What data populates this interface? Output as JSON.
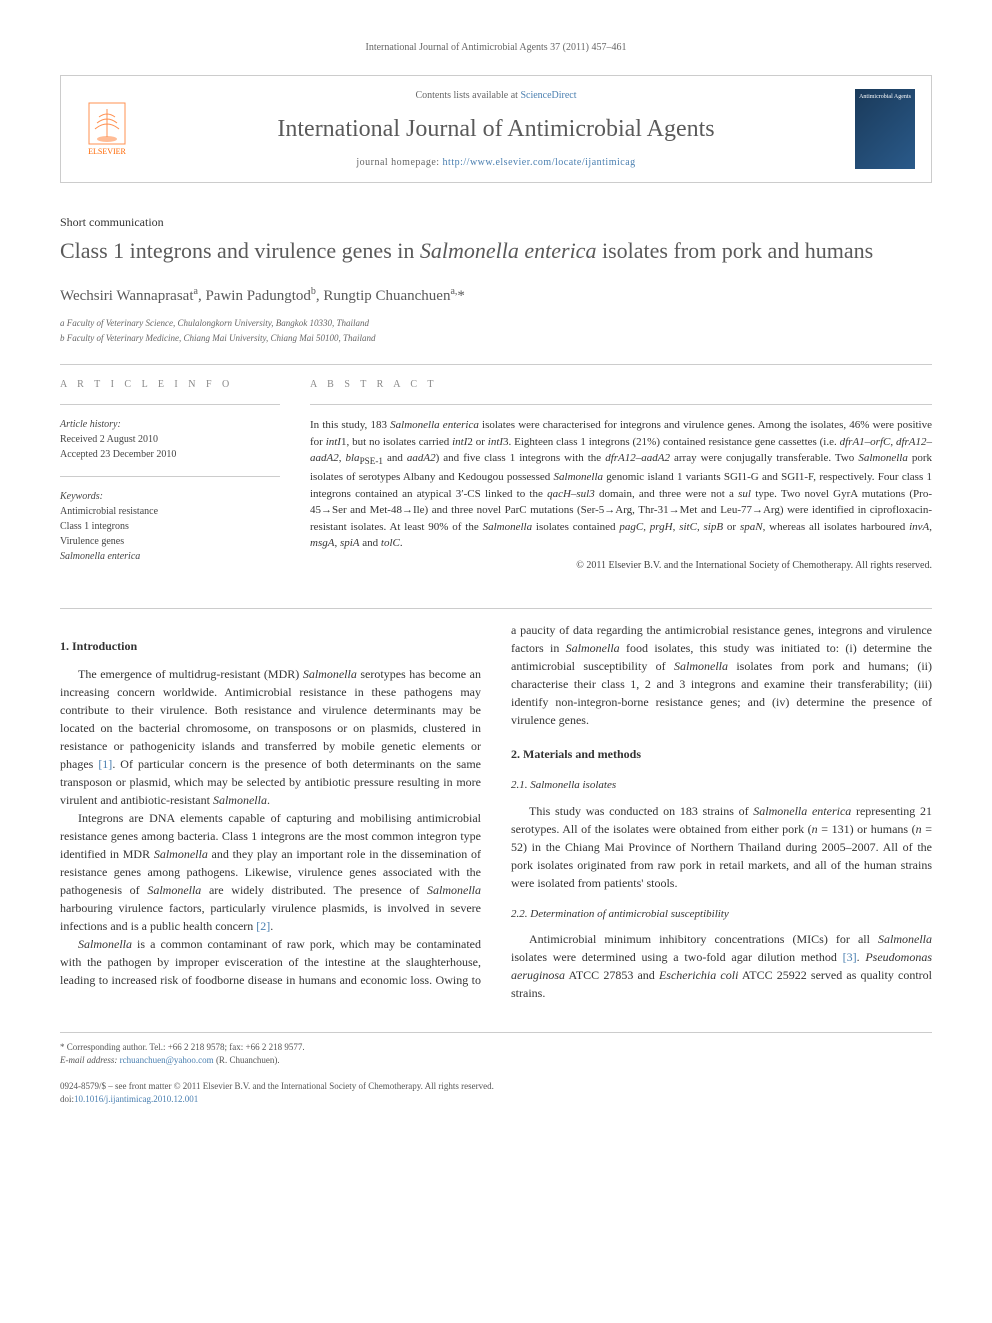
{
  "running_header": "International Journal of Antimicrobial Agents 37 (2011) 457–461",
  "journal_box": {
    "publisher_label": "ELSEVIER",
    "contents_prefix": "Contents lists available at ",
    "contents_link": "ScienceDirect",
    "journal_name": "International Journal of Antimicrobial Agents",
    "homepage_prefix": "journal homepage: ",
    "homepage_url": "http://www.elsevier.com/locate/ijantimicag",
    "cover_text": "Antimicrobial Agents"
  },
  "article_type": "Short communication",
  "article_title_html": "Class 1 integrons and virulence genes in <em>Salmonella enterica</em> isolates from pork and humans",
  "authors_html": "Wechsiri Wannaprasat<sup>a</sup>, Pawin Padungtod<sup>b</sup>, Rungtip Chuanchuen<sup>a,</sup>*",
  "affiliations": [
    "a Faculty of Veterinary Science, Chulalongkorn University, Bangkok 10330, Thailand",
    "b Faculty of Veterinary Medicine, Chiang Mai University, Chiang Mai 50100, Thailand"
  ],
  "info": {
    "heading": "A R T I C L E   I N F O",
    "history_label": "Article history:",
    "received": "Received 2 August 2010",
    "accepted": "Accepted 23 December 2010",
    "keywords_label": "Keywords:",
    "keywords": [
      "Antimicrobial resistance",
      "Class 1 integrons",
      "Virulence genes",
      "Salmonella enterica"
    ]
  },
  "abstract": {
    "heading": "A B S T R A C T",
    "text_html": "In this study, 183 <em>Salmonella enterica</em> isolates were characterised for integrons and virulence genes. Among the isolates, 46% were positive for <em>intI</em>1, but no isolates carried <em>intI</em>2 or <em>intI</em>3. Eighteen class 1 integrons (21%) contained resistance gene cassettes (i.e. <em>dfrA1–orfC</em>, <em>dfrA12–aadA2</em>, <em>bla</em><sub>PSE-1</sub> and <em>aadA2</em>) and five class 1 integrons with the <em>dfrA12–aadA2</em> array were conjugally transferable. Two <em>Salmonella</em> pork isolates of serotypes Albany and Kedougou possessed <em>Salmonella</em> genomic island 1 variants SGI1-G and SGI1-F, respectively. Four class 1 integrons contained an atypical 3′-CS linked to the <em>qacH–sul3</em> domain, and three were not a <em>sul</em> type. Two novel GyrA mutations (Pro-45→Ser and Met-48→Ile) and three novel ParC mutations (Ser-5→Arg, Thr-31→Met and Leu-77→Arg) were identified in ciprofloxacin-resistant isolates. At least 90% of the <em>Salmonella</em> isolates contained <em>pagC</em>, <em>prgH</em>, <em>sitC</em>, <em>sipB</em> or <em>spaN</em>, whereas all isolates harboured <em>invA</em>, <em>msgA</em>, <em>spiA</em> and <em>tolC</em>.",
    "copyright": "© 2011 Elsevier B.V. and the International Society of Chemotherapy. All rights reserved."
  },
  "body": {
    "s1_heading": "1. Introduction",
    "s1_p1_html": "The emergence of multidrug-resistant (MDR) <em>Salmonella</em> serotypes has become an increasing concern worldwide. Antimicrobial resistance in these pathogens may contribute to their virulence. Both resistance and virulence determinants may be located on the bacterial chromosome, on transposons or on plasmids, clustered in resistance or pathogenicity islands and transferred by mobile genetic elements or phages <a class=\"ref-link\" href=\"#\" data-name=\"ref-link-1\" data-interactable=\"true\">[1]</a>. Of particular concern is the presence of both determinants on the same transposon or plasmid, which may be selected by antibiotic pressure resulting in more virulent and antibiotic-resistant <em>Salmonella</em>.",
    "s1_p2_html": "Integrons are DNA elements capable of capturing and mobilising antimicrobial resistance genes among bacteria. Class 1 integrons are the most common integron type identified in MDR <em>Salmonella</em> and they play an important role in the dissemination of resistance genes among pathogens. Likewise, virulence genes associated with the pathogenesis of <em>Salmonella</em> are widely distributed. The presence of <em>Salmonella</em> harbouring virulence factors, particularly virulence plasmids, is involved in severe infections and is a public health concern <a class=\"ref-link\" href=\"#\" data-name=\"ref-link-2\" data-interactable=\"true\">[2]</a>.",
    "s1_p3_html": "<em>Salmonella</em> is a common contaminant of raw pork, which may be contaminated with the pathogen by improper evisceration of the intestine at the slaughterhouse, leading to increased risk of foodborne disease in humans and economic loss. Owing to a paucity of data regarding the antimicrobial resistance genes, integrons and virulence factors in <em>Salmonella</em> food isolates, this study was initiated to: (i) determine the antimicrobial susceptibility of <em>Salmonella</em> isolates from pork and humans; (ii) characterise their class 1, 2 and 3 integrons and examine their transferability; (iii) identify non-integron-borne resistance genes; and (iv) determine the presence of virulence genes.",
    "s2_heading": "2. Materials and methods",
    "s2_1_heading": "2.1. Salmonella isolates",
    "s2_1_p1_html": "This study was conducted on 183 strains of <em>Salmonella enterica</em> representing 21 serotypes. All of the isolates were obtained from either pork (<em>n</em> = 131) or humans (<em>n</em> = 52) in the Chiang Mai Province of Northern Thailand during 2005–2007. All of the pork isolates originated from raw pork in retail markets, and all of the human strains were isolated from patients' stools.",
    "s2_2_heading": "2.2. Determination of antimicrobial susceptibility",
    "s2_2_p1_html": "Antimicrobial minimum inhibitory concentrations (MICs) for all <em>Salmonella</em> isolates were determined using a two-fold agar dilution method <a class=\"ref-link\" href=\"#\" data-name=\"ref-link-3\" data-interactable=\"true\">[3]</a>. <em>Pseudomonas aeruginosa</em> ATCC 27853 and <em>Escherichia coli</em> ATCC 25922 served as quality control strains."
  },
  "footnotes": {
    "corresponding_html": "* Corresponding author. Tel.: +66 2 218 9578; fax: +66 2 218 9577.",
    "email_label": "E-mail address:",
    "email": "rchuanchuen@yahoo.com",
    "email_suffix": "(R. Chuanchuen)."
  },
  "footer": {
    "line1": "0924-8579/$ – see front matter © 2011 Elsevier B.V. and the International Society of Chemotherapy. All rights reserved.",
    "doi_label": "doi:",
    "doi": "10.1016/j.ijantimicag.2010.12.001"
  }
}
